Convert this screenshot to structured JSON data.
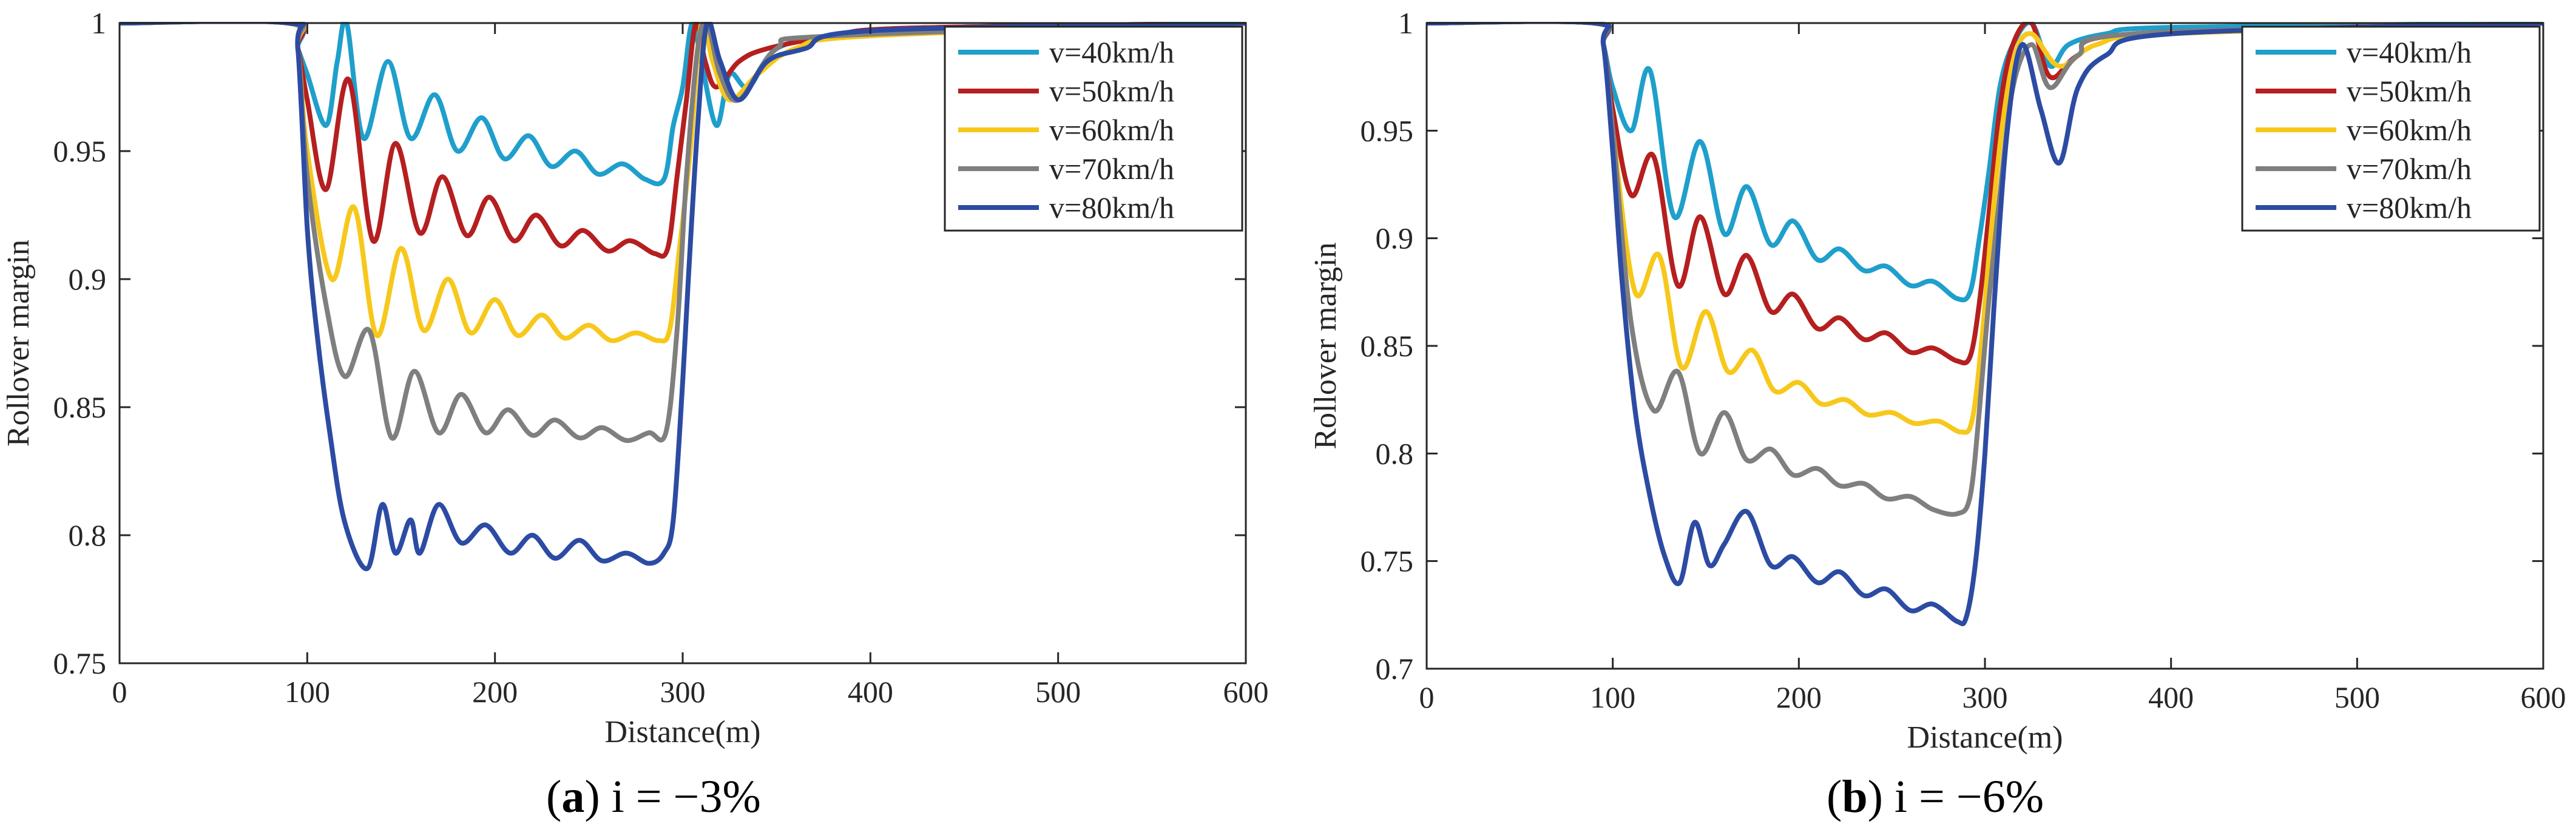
{
  "chart_data": [
    {
      "id": "a",
      "type": "line",
      "caption_label": "a",
      "caption_text": "i = −3%",
      "xlabel": "Distance(m)",
      "ylabel": "Rollover margin",
      "xlim": [
        0,
        600
      ],
      "ylim": [
        0.75,
        1
      ],
      "xticks": [
        "0",
        "100",
        "200",
        "300",
        "400",
        "500",
        "600"
      ],
      "yticks": [
        "0.75",
        "0.8",
        "0.85",
        "0.9",
        "0.95",
        "1"
      ],
      "legend_position": "top-right",
      "series": [
        {
          "name": "v=40km/h",
          "color": "#1f9fcb",
          "x": [
            0,
            90,
            95,
            100,
            110,
            116,
            121,
            130,
            143,
            155,
            168,
            180,
            193,
            205,
            218,
            230,
            243,
            255,
            268,
            280,
            290,
            295,
            300,
            305,
            310,
            318,
            325,
            335,
            350,
            380,
            420,
            600
          ],
          "y": [
            1,
            1,
            0.99,
            0.98,
            0.96,
            0.985,
            1.0,
            0.955,
            0.985,
            0.955,
            0.972,
            0.95,
            0.963,
            0.947,
            0.956,
            0.944,
            0.95,
            0.941,
            0.945,
            0.939,
            0.939,
            0.96,
            0.975,
            1.0,
            0.985,
            0.96,
            0.98,
            0.975,
            0.99,
            0.995,
            0.998,
            1
          ]
        },
        {
          "name": "v=50km/h",
          "color": "#b51f1f",
          "x": [
            0,
            90,
            95,
            100,
            110,
            122,
            135,
            147,
            160,
            172,
            185,
            197,
            210,
            222,
            235,
            247,
            260,
            272,
            285,
            292,
            297,
            302,
            307,
            312,
            318,
            330,
            345,
            380,
            420,
            600
          ],
          "y": [
            1,
            1,
            0.99,
            0.97,
            0.935,
            0.978,
            0.915,
            0.953,
            0.918,
            0.94,
            0.917,
            0.932,
            0.915,
            0.925,
            0.913,
            0.919,
            0.911,
            0.915,
            0.91,
            0.912,
            0.94,
            0.97,
            1.0,
            0.985,
            0.975,
            0.985,
            0.99,
            0.995,
            0.998,
            1
          ]
        },
        {
          "name": "v=60km/h",
          "color": "#f7c81b",
          "x": [
            0,
            90,
            95,
            100,
            113,
            125,
            137,
            150,
            162,
            175,
            187,
            200,
            212,
            225,
            237,
            250,
            262,
            275,
            287,
            293,
            298,
            304,
            310,
            316,
            325,
            340,
            360,
            400,
            600
          ],
          "y": [
            1,
            1,
            0.99,
            0.95,
            0.9,
            0.928,
            0.878,
            0.912,
            0.88,
            0.9,
            0.879,
            0.892,
            0.878,
            0.886,
            0.877,
            0.882,
            0.876,
            0.879,
            0.876,
            0.88,
            0.91,
            0.95,
            1.0,
            0.985,
            0.97,
            0.98,
            0.99,
            0.995,
            1
          ]
        },
        {
          "name": "v=70km/h",
          "color": "#7f7f7f",
          "x": [
            0,
            90,
            95,
            100,
            110,
            120,
            133,
            145,
            157,
            170,
            182,
            195,
            207,
            220,
            232,
            245,
            257,
            270,
            282,
            291,
            297,
            302,
            308,
            313,
            320,
            330,
            350,
            380,
            600
          ],
          "y": [
            1,
            1,
            0.99,
            0.94,
            0.89,
            0.862,
            0.88,
            0.838,
            0.864,
            0.84,
            0.855,
            0.84,
            0.849,
            0.839,
            0.845,
            0.838,
            0.842,
            0.837,
            0.84,
            0.84,
            0.88,
            0.94,
            0.99,
            1.0,
            0.98,
            0.97,
            0.99,
            0.995,
            1
          ]
        },
        {
          "name": "v=80km/h",
          "color": "#2c4ba3",
          "x": [
            0,
            90,
            95,
            100,
            105,
            112,
            120,
            132,
            140,
            147,
            155,
            160,
            170,
            182,
            195,
            208,
            220,
            232,
            245,
            257,
            270,
            282,
            290,
            295,
            300,
            303,
            308,
            313,
            320,
            330,
            345,
            365,
            400,
            600
          ],
          "y": [
            1,
            1,
            0.99,
            0.92,
            0.88,
            0.84,
            0.805,
            0.787,
            0.812,
            0.793,
            0.806,
            0.793,
            0.812,
            0.797,
            0.804,
            0.793,
            0.8,
            0.791,
            0.798,
            0.79,
            0.793,
            0.789,
            0.793,
            0.806,
            0.86,
            0.9,
            0.96,
            1.0,
            0.985,
            0.97,
            0.985,
            0.99,
            0.997,
            1
          ]
        }
      ]
    },
    {
      "id": "b",
      "type": "line",
      "caption_label": "b",
      "caption_text": "i = −6%",
      "xlabel": "Distance(m)",
      "ylabel": "Rollover margin",
      "xlim": [
        0,
        600
      ],
      "ylim": [
        0.7,
        1
      ],
      "xticks": [
        "0",
        "100",
        "200",
        "300",
        "400",
        "500",
        "600"
      ],
      "yticks": [
        "0.7",
        "0.75",
        "0.8",
        "0.85",
        "0.9",
        "0.95",
        "1"
      ],
      "legend_position": "top-right",
      "series": [
        {
          "name": "v=40km/h",
          "color": "#1f9fcb",
          "x": [
            0,
            90,
            95,
            100,
            110,
            120,
            133,
            147,
            160,
            172,
            185,
            197,
            210,
            222,
            235,
            247,
            260,
            272,
            285,
            292,
            297,
            302,
            308,
            315,
            325,
            335,
            345,
            365,
            400,
            600
          ],
          "y": [
            1,
            1,
            0.99,
            0.97,
            0.95,
            0.978,
            0.91,
            0.945,
            0.902,
            0.924,
            0.897,
            0.908,
            0.89,
            0.895,
            0.885,
            0.887,
            0.878,
            0.88,
            0.872,
            0.875,
            0.9,
            0.93,
            0.97,
            0.99,
            1.0,
            0.98,
            0.99,
            0.995,
            0.998,
            1
          ]
        },
        {
          "name": "v=50km/h",
          "color": "#b51f1f",
          "x": [
            0,
            90,
            95,
            100,
            110,
            122,
            135,
            147,
            160,
            172,
            185,
            197,
            210,
            222,
            235,
            247,
            260,
            272,
            285,
            292,
            297,
            302,
            308,
            315,
            325,
            335,
            350,
            380,
            600
          ],
          "y": [
            1,
            1,
            0.99,
            0.96,
            0.92,
            0.938,
            0.878,
            0.91,
            0.874,
            0.892,
            0.866,
            0.874,
            0.858,
            0.863,
            0.853,
            0.856,
            0.847,
            0.849,
            0.843,
            0.845,
            0.87,
            0.91,
            0.96,
            0.99,
            1.0,
            0.975,
            0.985,
            0.995,
            1
          ]
        },
        {
          "name": "v=60km/h",
          "color": "#f7c81b",
          "x": [
            0,
            90,
            95,
            100,
            112,
            125,
            137,
            150,
            162,
            175,
            187,
            200,
            212,
            225,
            237,
            250,
            262,
            275,
            287,
            293,
            298,
            303,
            309,
            316,
            325,
            340,
            360,
            400,
            600
          ],
          "y": [
            1,
            1,
            0.99,
            0.95,
            0.875,
            0.892,
            0.84,
            0.866,
            0.838,
            0.848,
            0.829,
            0.833,
            0.823,
            0.825,
            0.818,
            0.819,
            0.814,
            0.815,
            0.81,
            0.815,
            0.85,
            0.9,
            0.95,
            0.985,
            0.995,
            0.98,
            0.99,
            0.995,
            1
          ]
        },
        {
          "name": "v=70km/h",
          "color": "#7f7f7f",
          "x": [
            0,
            90,
            95,
            100,
            110,
            122,
            135,
            147,
            160,
            172,
            185,
            197,
            210,
            222,
            235,
            247,
            260,
            272,
            285,
            292,
            297,
            302,
            308,
            315,
            325,
            335,
            350,
            380,
            600
          ],
          "y": [
            1,
            1,
            0.99,
            0.95,
            0.86,
            0.82,
            0.838,
            0.8,
            0.819,
            0.797,
            0.802,
            0.79,
            0.793,
            0.785,
            0.786,
            0.779,
            0.78,
            0.774,
            0.772,
            0.78,
            0.82,
            0.87,
            0.92,
            0.97,
            0.99,
            0.97,
            0.985,
            0.995,
            1
          ]
        },
        {
          "name": "v=80km/h",
          "color": "#2c4ba3",
          "x": [
            0,
            90,
            95,
            100,
            105,
            112,
            120,
            128,
            136,
            144,
            152,
            160,
            172,
            185,
            197,
            210,
            222,
            235,
            247,
            260,
            272,
            285,
            290,
            295,
            300,
            305,
            312,
            320,
            330,
            340,
            350,
            365,
            400,
            600
          ],
          "y": [
            1,
            1,
            0.99,
            0.94,
            0.88,
            0.82,
            0.78,
            0.752,
            0.74,
            0.768,
            0.748,
            0.758,
            0.773,
            0.748,
            0.752,
            0.74,
            0.745,
            0.734,
            0.737,
            0.727,
            0.73,
            0.722,
            0.724,
            0.75,
            0.8,
            0.87,
            0.95,
            0.99,
            0.96,
            0.935,
            0.97,
            0.985,
            0.995,
            1
          ]
        }
      ]
    }
  ]
}
